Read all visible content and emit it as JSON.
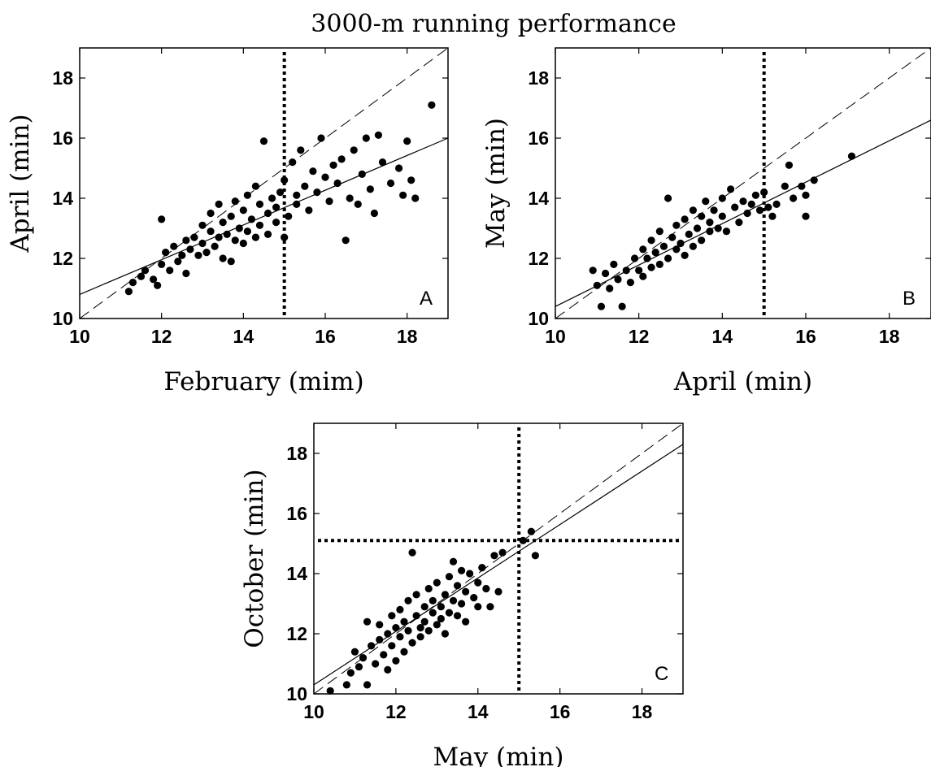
{
  "figure": {
    "title": "3000-m running performance"
  },
  "chart_data": [
    {
      "type": "scatter",
      "panel": "A",
      "xlabel": "February (mim)",
      "ylabel": "April (min)",
      "xlim": [
        10,
        19
      ],
      "ylim": [
        10,
        19
      ],
      "xticks": [
        10,
        12,
        14,
        16,
        18
      ],
      "yticks": [
        10,
        12,
        14,
        16,
        18
      ],
      "grid": false,
      "identity_line": {
        "style": "dashed",
        "from": [
          10,
          10
        ],
        "to": [
          19,
          19
        ]
      },
      "fit_line": {
        "style": "solid",
        "from": [
          10,
          10.8
        ],
        "to": [
          19,
          16.0
        ]
      },
      "reference_lines": [
        {
          "orientation": "vertical",
          "value": 15,
          "style": "dotted"
        }
      ],
      "points": [
        [
          11.2,
          10.9
        ],
        [
          11.3,
          11.2
        ],
        [
          11.5,
          11.4
        ],
        [
          11.6,
          11.6
        ],
        [
          11.8,
          11.3
        ],
        [
          11.9,
          11.1
        ],
        [
          12.0,
          13.3
        ],
        [
          12.0,
          11.8
        ],
        [
          12.1,
          12.2
        ],
        [
          12.2,
          11.6
        ],
        [
          12.3,
          12.4
        ],
        [
          12.4,
          11.9
        ],
        [
          12.5,
          12.1
        ],
        [
          12.6,
          12.6
        ],
        [
          12.6,
          11.5
        ],
        [
          12.7,
          12.3
        ],
        [
          12.8,
          12.7
        ],
        [
          12.9,
          12.1
        ],
        [
          13.0,
          12.5
        ],
        [
          13.0,
          13.1
        ],
        [
          13.1,
          12.2
        ],
        [
          13.2,
          12.9
        ],
        [
          13.2,
          13.5
        ],
        [
          13.3,
          12.4
        ],
        [
          13.4,
          12.7
        ],
        [
          13.4,
          13.8
        ],
        [
          13.5,
          12.0
        ],
        [
          13.5,
          13.2
        ],
        [
          13.6,
          12.8
        ],
        [
          13.7,
          13.4
        ],
        [
          13.7,
          11.9
        ],
        [
          13.8,
          12.6
        ],
        [
          13.8,
          13.9
        ],
        [
          13.9,
          13.0
        ],
        [
          14.0,
          12.5
        ],
        [
          14.0,
          13.6
        ],
        [
          14.1,
          14.1
        ],
        [
          14.1,
          12.9
        ],
        [
          14.2,
          13.3
        ],
        [
          14.3,
          14.4
        ],
        [
          14.3,
          12.7
        ],
        [
          14.4,
          13.1
        ],
        [
          14.4,
          13.8
        ],
        [
          14.5,
          15.9
        ],
        [
          14.6,
          13.5
        ],
        [
          14.6,
          12.8
        ],
        [
          14.7,
          14.0
        ],
        [
          14.8,
          13.2
        ],
        [
          14.8,
          13.7
        ],
        [
          14.9,
          14.2
        ],
        [
          15.0,
          12.7
        ],
        [
          15.0,
          14.6
        ],
        [
          15.1,
          13.4
        ],
        [
          15.2,
          15.2
        ],
        [
          15.3,
          13.8
        ],
        [
          15.3,
          14.1
        ],
        [
          15.4,
          15.6
        ],
        [
          15.5,
          14.4
        ],
        [
          15.6,
          13.6
        ],
        [
          15.7,
          14.9
        ],
        [
          15.8,
          14.2
        ],
        [
          15.9,
          16.0
        ],
        [
          16.0,
          14.7
        ],
        [
          16.1,
          13.9
        ],
        [
          16.2,
          15.1
        ],
        [
          16.3,
          14.5
        ],
        [
          16.4,
          15.3
        ],
        [
          16.5,
          12.6
        ],
        [
          16.6,
          14.0
        ],
        [
          16.7,
          15.6
        ],
        [
          16.8,
          13.8
        ],
        [
          16.9,
          14.8
        ],
        [
          17.0,
          16.0
        ],
        [
          17.1,
          14.3
        ],
        [
          17.2,
          13.5
        ],
        [
          17.3,
          16.1
        ],
        [
          17.4,
          15.2
        ],
        [
          17.6,
          14.5
        ],
        [
          17.8,
          15.0
        ],
        [
          17.9,
          14.1
        ],
        [
          18.0,
          15.9
        ],
        [
          18.1,
          14.6
        ],
        [
          18.2,
          14.0
        ],
        [
          18.6,
          17.1
        ]
      ]
    },
    {
      "type": "scatter",
      "panel": "B",
      "xlabel": "April (min)",
      "ylabel": "May (min)",
      "xlim": [
        10,
        19
      ],
      "ylim": [
        10,
        19
      ],
      "xticks": [
        10,
        12,
        14,
        16,
        18
      ],
      "yticks": [
        10,
        12,
        14,
        16,
        18
      ],
      "grid": false,
      "identity_line": {
        "style": "dashed",
        "from": [
          10,
          10
        ],
        "to": [
          19,
          19
        ]
      },
      "fit_line": {
        "style": "solid",
        "from": [
          10,
          10.4
        ],
        "to": [
          19,
          16.6
        ]
      },
      "reference_lines": [
        {
          "orientation": "vertical",
          "value": 15,
          "style": "dotted"
        }
      ],
      "points": [
        [
          10.9,
          11.6
        ],
        [
          11.0,
          11.1
        ],
        [
          11.1,
          10.4
        ],
        [
          11.2,
          11.5
        ],
        [
          11.3,
          11.0
        ],
        [
          11.4,
          11.8
        ],
        [
          11.5,
          11.3
        ],
        [
          11.6,
          10.4
        ],
        [
          11.7,
          11.6
        ],
        [
          11.8,
          11.2
        ],
        [
          11.9,
          12.0
        ],
        [
          12.0,
          11.6
        ],
        [
          12.1,
          12.3
        ],
        [
          12.1,
          11.4
        ],
        [
          12.2,
          12.0
        ],
        [
          12.3,
          11.7
        ],
        [
          12.3,
          12.6
        ],
        [
          12.4,
          12.2
        ],
        [
          12.5,
          11.8
        ],
        [
          12.5,
          12.9
        ],
        [
          12.6,
          12.4
        ],
        [
          12.7,
          14.0
        ],
        [
          12.7,
          12.0
        ],
        [
          12.8,
          12.7
        ],
        [
          12.9,
          12.3
        ],
        [
          12.9,
          13.1
        ],
        [
          13.0,
          12.5
        ],
        [
          13.1,
          12.1
        ],
        [
          13.1,
          13.3
        ],
        [
          13.2,
          12.8
        ],
        [
          13.3,
          12.4
        ],
        [
          13.3,
          13.6
        ],
        [
          13.4,
          13.0
        ],
        [
          13.5,
          12.6
        ],
        [
          13.5,
          13.4
        ],
        [
          13.6,
          13.9
        ],
        [
          13.7,
          12.9
        ],
        [
          13.7,
          13.2
        ],
        [
          13.8,
          13.6
        ],
        [
          13.9,
          13.0
        ],
        [
          14.0,
          14.0
        ],
        [
          14.0,
          13.4
        ],
        [
          14.1,
          12.9
        ],
        [
          14.2,
          14.3
        ],
        [
          14.3,
          13.7
        ],
        [
          14.4,
          13.2
        ],
        [
          14.5,
          13.9
        ],
        [
          14.6,
          13.5
        ],
        [
          14.7,
          13.8
        ],
        [
          14.8,
          14.1
        ],
        [
          14.9,
          13.6
        ],
        [
          15.0,
          14.2
        ],
        [
          15.1,
          13.7
        ],
        [
          15.2,
          13.4
        ],
        [
          15.3,
          13.8
        ],
        [
          15.5,
          14.4
        ],
        [
          15.6,
          15.1
        ],
        [
          15.7,
          14.0
        ],
        [
          15.9,
          14.4
        ],
        [
          16.0,
          14.1
        ],
        [
          16.0,
          13.4
        ],
        [
          16.2,
          14.6
        ],
        [
          17.1,
          15.4
        ]
      ]
    },
    {
      "type": "scatter",
      "panel": "C",
      "xlabel": "May (min)",
      "ylabel": "October (min)",
      "xlim": [
        10,
        19
      ],
      "ylim": [
        10,
        19
      ],
      "xticks": [
        10,
        12,
        14,
        16,
        18
      ],
      "yticks": [
        10,
        12,
        14,
        16,
        18
      ],
      "grid": false,
      "identity_line": {
        "style": "dashed",
        "from": [
          10,
          10
        ],
        "to": [
          19,
          19
        ]
      },
      "fit_line": {
        "style": "solid",
        "from": [
          10,
          10.3
        ],
        "to": [
          19,
          18.3
        ]
      },
      "reference_lines": [
        {
          "orientation": "vertical",
          "value": 15,
          "style": "dotted"
        },
        {
          "orientation": "horizontal",
          "value": 15.1,
          "style": "dotted"
        }
      ],
      "points": [
        [
          10.4,
          10.1
        ],
        [
          10.8,
          10.3
        ],
        [
          10.9,
          10.7
        ],
        [
          11.0,
          11.4
        ],
        [
          11.1,
          10.9
        ],
        [
          11.2,
          11.2
        ],
        [
          11.3,
          10.3
        ],
        [
          11.3,
          12.4
        ],
        [
          11.4,
          11.6
        ],
        [
          11.5,
          11.0
        ],
        [
          11.6,
          11.8
        ],
        [
          11.6,
          12.3
        ],
        [
          11.7,
          11.3
        ],
        [
          11.8,
          12.0
        ],
        [
          11.8,
          10.8
        ],
        [
          11.9,
          12.6
        ],
        [
          11.9,
          11.6
        ],
        [
          12.0,
          12.2
        ],
        [
          12.0,
          11.1
        ],
        [
          12.1,
          12.8
        ],
        [
          12.1,
          11.9
        ],
        [
          12.2,
          12.4
        ],
        [
          12.2,
          11.4
        ],
        [
          12.3,
          13.1
        ],
        [
          12.3,
          12.1
        ],
        [
          12.4,
          14.7
        ],
        [
          12.4,
          11.7
        ],
        [
          12.5,
          12.6
        ],
        [
          12.5,
          13.3
        ],
        [
          12.6,
          12.2
        ],
        [
          12.6,
          11.9
        ],
        [
          12.7,
          12.9
        ],
        [
          12.7,
          12.4
        ],
        [
          12.8,
          13.5
        ],
        [
          12.8,
          12.1
        ],
        [
          12.9,
          12.7
        ],
        [
          12.9,
          13.1
        ],
        [
          13.0,
          12.3
        ],
        [
          13.0,
          13.7
        ],
        [
          13.1,
          12.9
        ],
        [
          13.1,
          12.5
        ],
        [
          13.2,
          13.3
        ],
        [
          13.2,
          12.0
        ],
        [
          13.3,
          13.9
        ],
        [
          13.3,
          12.7
        ],
        [
          13.4,
          14.4
        ],
        [
          13.4,
          13.1
        ],
        [
          13.5,
          12.6
        ],
        [
          13.5,
          13.6
        ],
        [
          13.6,
          14.1
        ],
        [
          13.6,
          13.0
        ],
        [
          13.7,
          12.4
        ],
        [
          13.7,
          13.4
        ],
        [
          13.8,
          14.0
        ],
        [
          13.9,
          13.2
        ],
        [
          14.0,
          12.9
        ],
        [
          14.0,
          13.7
        ],
        [
          14.1,
          14.2
        ],
        [
          14.2,
          13.5
        ],
        [
          14.3,
          12.9
        ],
        [
          14.4,
          14.6
        ],
        [
          14.5,
          13.4
        ],
        [
          14.6,
          14.7
        ],
        [
          15.1,
          15.1
        ],
        [
          15.3,
          15.4
        ],
        [
          15.4,
          14.6
        ]
      ]
    }
  ]
}
